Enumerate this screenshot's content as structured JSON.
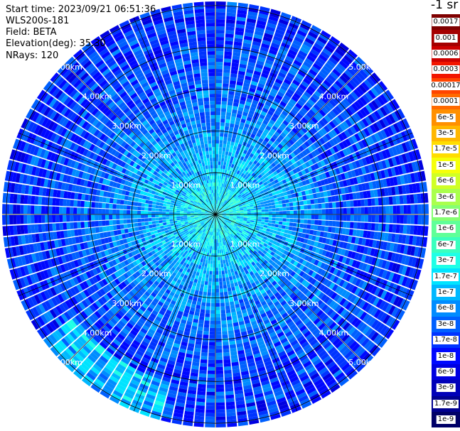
{
  "header": {
    "start_time": "Start time: 2023/09/21 06:51:36",
    "instrument": "WLS200s-181",
    "field": "Field: BETA",
    "elevation": "Elevation(deg): 35.30",
    "nrays": "NRays: 120"
  },
  "colorbar": {
    "unit": "-1 sr",
    "labels": [
      "0.0017",
      "0.001",
      "0.0006",
      "0.0003",
      "0.00017",
      "0.0001",
      "6e-5",
      "3e-5",
      "1.7e-5",
      "1e-5",
      "6e-6",
      "3e-6",
      "1.7e-6",
      "1e-6",
      "6e-7",
      "3e-7",
      "1.7e-7",
      "1e-7",
      "6e-8",
      "3e-8",
      "1.7e-8",
      "1e-8",
      "6e-9",
      "3e-9",
      "1.7e-9",
      "1e-9"
    ],
    "colors": [
      "#7f0000",
      "#a50000",
      "#cc0000",
      "#f21500",
      "#ff4400",
      "#ff6a00",
      "#ff9000",
      "#ffb700",
      "#ffdd00",
      "#f5ff0a",
      "#d0ff26",
      "#aaff4d",
      "#85ff73",
      "#5fff98",
      "#3affbe",
      "#1fffe6",
      "#00e4ff",
      "#00b8ff",
      "#008cff",
      "#0060ff",
      "#0034ff",
      "#0008ff",
      "#0000e0",
      "#0000b8",
      "#00008f",
      "#000067"
    ]
  },
  "chart_data": {
    "type": "heatmap",
    "projection": "polar-ppi",
    "nrays": 120,
    "range_rings_km": [
      1,
      2,
      3,
      4,
      5
    ],
    "range_ring_labels": [
      "1.00km",
      "2.00km",
      "3.00km",
      "4.00km",
      "5.00km"
    ],
    "max_range_km": 5.1,
    "field": "BETA",
    "elevation_deg": 35.3,
    "colorscale": "log10 beta (m-1 sr-1), 1e-9 to 0.0017",
    "typical_beta_by_range": [
      {
        "range_km": 0.5,
        "beta": 2e-07
      },
      {
        "range_km": 1.0,
        "beta": 1.2e-07
      },
      {
        "range_km": 2.0,
        "beta": 6e-08
      },
      {
        "range_km": 3.0,
        "beta": 3e-08
      },
      {
        "range_km": 4.0,
        "beta": 2e-08
      },
      {
        "range_km": 5.0,
        "beta": 1.5e-08
      }
    ],
    "grid": true,
    "spoke_count": 16
  }
}
